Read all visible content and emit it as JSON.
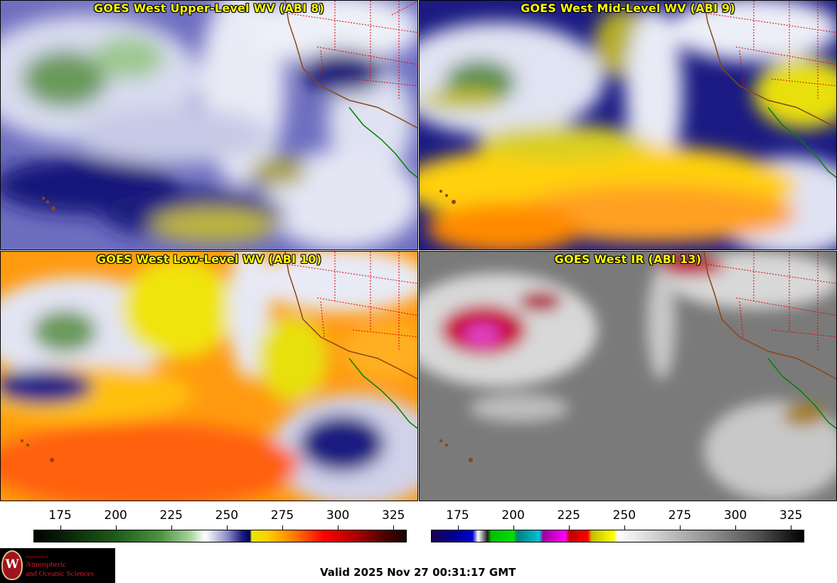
{
  "panels": [
    {
      "title": "GOES West Upper-Level WV (ABI 8)",
      "palette": "wv-upper"
    },
    {
      "title": "GOES West Mid-Level WV (ABI 9)",
      "palette": "wv-mid"
    },
    {
      "title": "GOES West Low-Level WV (ABI 10)",
      "palette": "wv-low"
    },
    {
      "title": "GOES West IR (ABI 13)",
      "palette": "ir"
    }
  ],
  "colorbars": [
    {
      "ticks": [
        "175",
        "200",
        "225",
        "250",
        "275",
        "300",
        "325"
      ],
      "range": [
        163,
        331
      ]
    },
    {
      "ticks": [
        "175",
        "200",
        "225",
        "250",
        "275",
        "300",
        "325"
      ],
      "range": [
        163,
        331
      ]
    }
  ],
  "logo": {
    "dept": "Department of",
    "line1": "Atmospheric",
    "line2": "and Oceanic Sciences",
    "seal_letter": "W"
  },
  "valid_time": "Valid 2025 Nov 27 00:31:17 GMT",
  "colors": {
    "title_text": "#ffff00",
    "state_borders": "#dd0000",
    "coastline_north": "#8b4513",
    "coastline_south": "#008000"
  }
}
